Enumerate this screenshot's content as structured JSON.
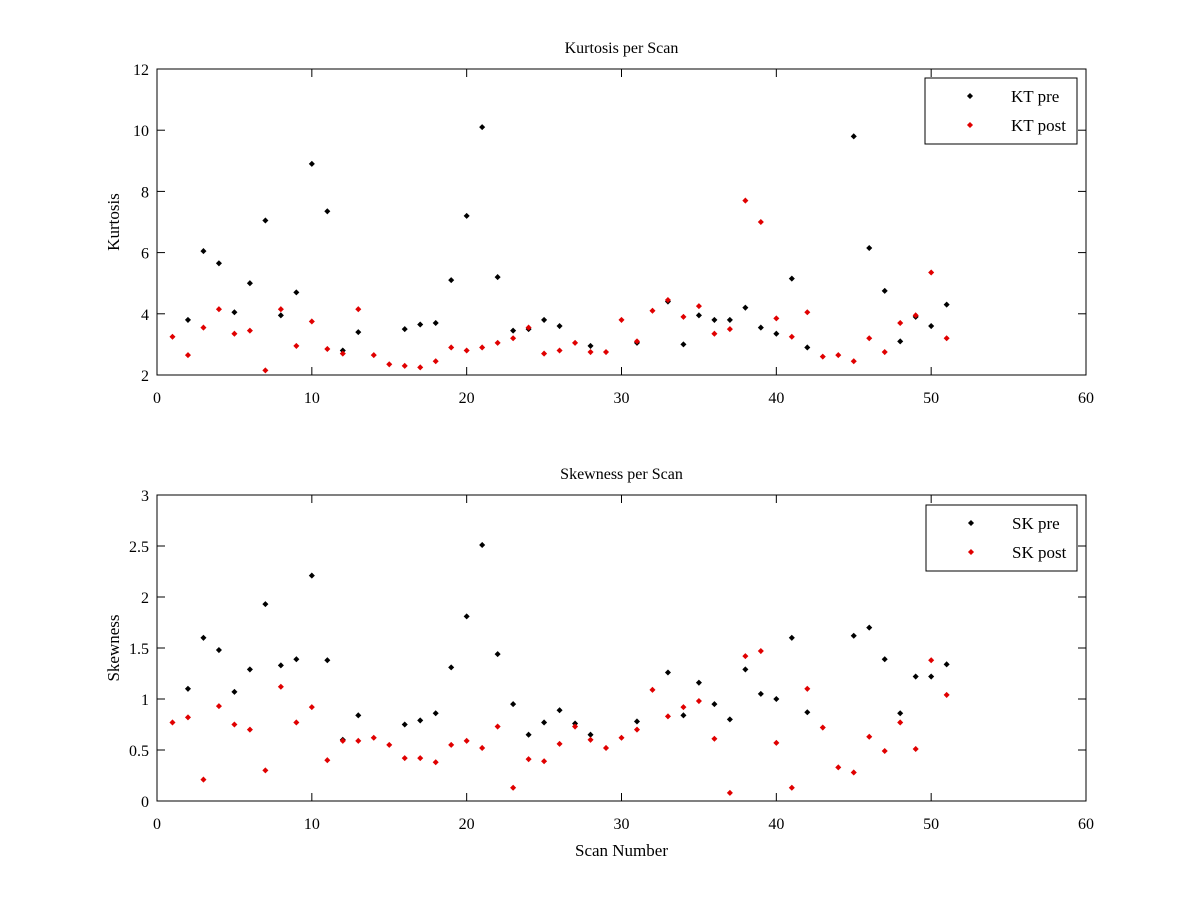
{
  "colors": {
    "pre": "#000000",
    "post": "#e00000",
    "axis": "#000000",
    "background": "#ffffff"
  },
  "chart_data": [
    {
      "type": "scatter",
      "title": "Kurtosis per Scan",
      "xlabel": "",
      "ylabel": "Kurtosis",
      "xlim": [
        0,
        60
      ],
      "ylim": [
        2,
        12
      ],
      "xticks": [
        0,
        10,
        20,
        30,
        40,
        50,
        60
      ],
      "yticks": [
        2,
        4,
        6,
        8,
        10,
        12
      ],
      "grid": false,
      "legend_position": "top-right",
      "series": [
        {
          "name": "KT pre",
          "color": "#000000",
          "x": [
            2,
            3,
            4,
            5,
            6,
            7,
            8,
            9,
            10,
            11,
            12,
            13,
            16,
            17,
            18,
            19,
            20,
            21,
            22,
            23,
            24,
            25,
            26,
            28,
            31,
            33,
            34,
            35,
            36,
            37,
            38,
            39,
            40,
            41,
            42,
            45,
            46,
            47,
            48,
            49,
            50,
            51
          ],
          "y": [
            3.8,
            6.05,
            5.65,
            4.05,
            5.0,
            7.05,
            3.95,
            4.7,
            8.9,
            7.35,
            2.8,
            3.4,
            3.5,
            3.65,
            3.7,
            5.1,
            7.2,
            10.1,
            5.2,
            3.45,
            3.5,
            3.8,
            3.6,
            2.95,
            3.05,
            4.4,
            3.0,
            3.95,
            3.8,
            3.8,
            4.2,
            3.55,
            3.35,
            5.15,
            2.9,
            9.8,
            6.15,
            4.75,
            3.1,
            3.9,
            3.6,
            4.3
          ]
        },
        {
          "name": "KT post",
          "color": "#e00000",
          "x": [
            1,
            2,
            3,
            4,
            5,
            6,
            7,
            8,
            9,
            10,
            11,
            12,
            13,
            14,
            15,
            16,
            17,
            18,
            19,
            20,
            21,
            22,
            23,
            24,
            25,
            26,
            27,
            28,
            29,
            30,
            31,
            32,
            33,
            34,
            35,
            36,
            37,
            38,
            39,
            40,
            41,
            42,
            43,
            44,
            45,
            46,
            47,
            48,
            49,
            50,
            51
          ],
          "y": [
            3.25,
            2.65,
            3.55,
            4.15,
            3.35,
            3.45,
            2.15,
            4.15,
            2.95,
            3.75,
            2.85,
            2.7,
            4.15,
            2.65,
            2.35,
            2.3,
            2.25,
            2.45,
            2.9,
            2.8,
            2.9,
            3.05,
            3.2,
            3.55,
            2.7,
            2.8,
            3.05,
            2.75,
            2.75,
            3.8,
            3.1,
            4.1,
            4.45,
            3.9,
            4.25,
            3.35,
            3.5,
            7.7,
            7.0,
            3.85,
            3.25,
            4.05,
            2.6,
            2.65,
            2.45,
            3.2,
            2.75,
            3.7,
            3.95,
            5.35,
            3.2
          ]
        }
      ]
    },
    {
      "type": "scatter",
      "title": "Skewness per Scan",
      "xlabel": "Scan Number",
      "ylabel": "Skewness",
      "xlim": [
        0,
        60
      ],
      "ylim": [
        0,
        3
      ],
      "xticks": [
        0,
        10,
        20,
        30,
        40,
        50,
        60
      ],
      "yticks": [
        0,
        0.5,
        1,
        1.5,
        2,
        2.5,
        3
      ],
      "grid": false,
      "legend_position": "top-right",
      "series": [
        {
          "name": "SK pre",
          "color": "#000000",
          "x": [
            2,
            3,
            4,
            5,
            6,
            7,
            8,
            9,
            10,
            11,
            12,
            13,
            16,
            17,
            18,
            19,
            20,
            21,
            22,
            23,
            24,
            25,
            26,
            27,
            28,
            31,
            33,
            34,
            35,
            36,
            37,
            38,
            39,
            40,
            41,
            42,
            45,
            46,
            47,
            48,
            49,
            50,
            51
          ],
          "y": [
            1.1,
            1.6,
            1.48,
            1.07,
            1.29,
            1.93,
            1.33,
            1.39,
            2.21,
            1.38,
            0.6,
            0.84,
            0.75,
            0.79,
            0.86,
            1.31,
            1.81,
            2.51,
            1.44,
            0.95,
            0.65,
            0.77,
            0.89,
            0.76,
            0.65,
            0.78,
            1.26,
            0.84,
            1.16,
            0.95,
            0.8,
            1.29,
            1.05,
            1.0,
            1.6,
            0.87,
            1.62,
            1.7,
            1.39,
            0.86,
            1.22,
            1.22,
            1.34
          ]
        },
        {
          "name": "SK post",
          "color": "#e00000",
          "x": [
            1,
            2,
            3,
            4,
            5,
            6,
            7,
            8,
            9,
            10,
            11,
            12,
            13,
            14,
            15,
            16,
            17,
            18,
            19,
            20,
            21,
            22,
            23,
            24,
            25,
            26,
            27,
            28,
            29,
            30,
            31,
            32,
            33,
            34,
            35,
            36,
            37,
            38,
            39,
            40,
            41,
            42,
            43,
            44,
            45,
            46,
            47,
            48,
            49,
            50,
            51
          ],
          "y": [
            0.77,
            0.82,
            0.21,
            0.93,
            0.75,
            0.7,
            0.3,
            1.12,
            0.77,
            0.92,
            0.4,
            0.59,
            0.59,
            0.62,
            0.55,
            0.42,
            0.42,
            0.38,
            0.55,
            0.59,
            0.52,
            0.73,
            0.13,
            0.41,
            0.39,
            0.56,
            0.73,
            0.6,
            0.52,
            0.62,
            0.7,
            1.09,
            0.83,
            0.92,
            0.98,
            0.61,
            0.08,
            1.42,
            1.47,
            0.57,
            0.13,
            1.1,
            0.72,
            0.33,
            0.28,
            0.63,
            0.49,
            0.77,
            0.51,
            1.38,
            1.04
          ]
        }
      ]
    }
  ]
}
